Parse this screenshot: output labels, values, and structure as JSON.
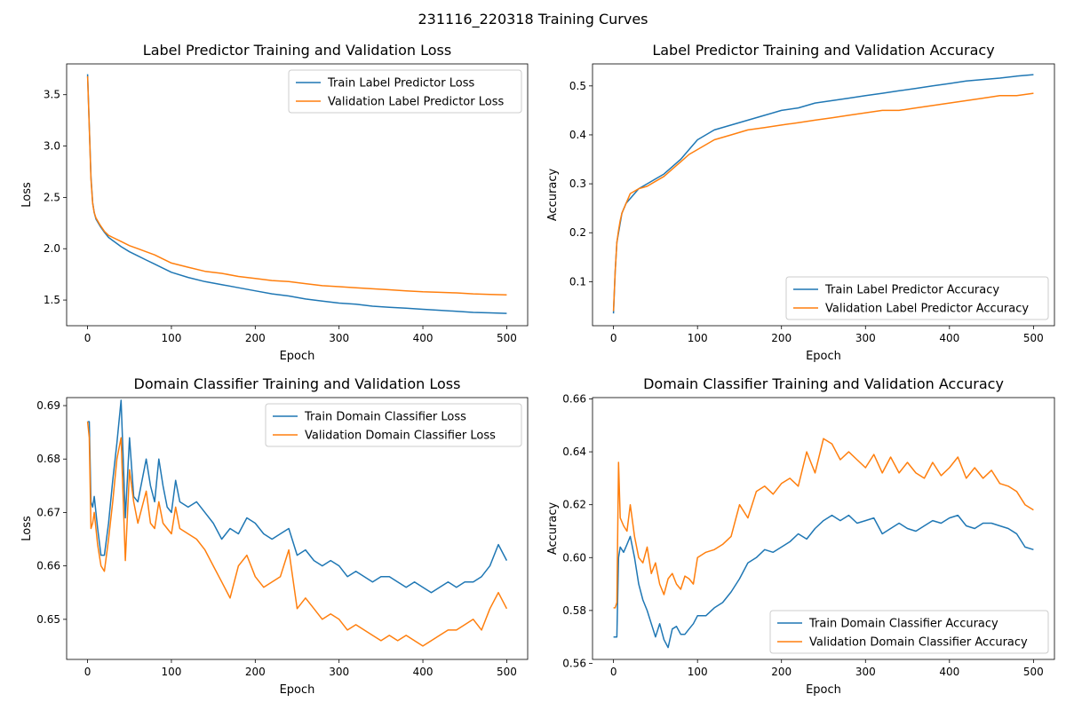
{
  "figure": {
    "suptitle": "231116_220318 Training Curves"
  },
  "colors": {
    "train": "#1f77b4",
    "validation": "#ff7f0e",
    "axes": "#000000"
  },
  "chart_data": [
    {
      "type": "line",
      "title": "Label Predictor Training and Validation Loss",
      "xlabel": "Epoch",
      "ylabel": "Loss",
      "xlim": [
        -25,
        525
      ],
      "ylim": [
        1.25,
        3.8
      ],
      "xticks": [
        0,
        100,
        200,
        300,
        400,
        500
      ],
      "yticks": [
        1.5,
        2.0,
        2.5,
        3.0,
        3.5
      ],
      "legend_position": "top-right",
      "series": [
        {
          "name": "Train Label Predictor Loss",
          "color": "#1f77b4",
          "x": [
            0,
            2,
            4,
            6,
            8,
            10,
            15,
            20,
            25,
            30,
            40,
            50,
            60,
            70,
            80,
            90,
            100,
            120,
            140,
            160,
            180,
            200,
            220,
            240,
            260,
            280,
            300,
            320,
            340,
            360,
            380,
            400,
            420,
            440,
            460,
            480,
            500
          ],
          "y": [
            3.7,
            3.2,
            2.7,
            2.45,
            2.35,
            2.29,
            2.22,
            2.16,
            2.11,
            2.08,
            2.02,
            1.97,
            1.93,
            1.89,
            1.85,
            1.81,
            1.77,
            1.72,
            1.68,
            1.65,
            1.62,
            1.59,
            1.56,
            1.54,
            1.51,
            1.49,
            1.47,
            1.46,
            1.44,
            1.43,
            1.42,
            1.41,
            1.4,
            1.39,
            1.38,
            1.375,
            1.37
          ]
        },
        {
          "name": "Validation Label Predictor Loss",
          "color": "#ff7f0e",
          "x": [
            0,
            2,
            4,
            6,
            8,
            10,
            15,
            20,
            25,
            30,
            40,
            50,
            60,
            70,
            80,
            90,
            100,
            120,
            140,
            160,
            180,
            200,
            220,
            240,
            260,
            280,
            300,
            320,
            340,
            360,
            380,
            400,
            420,
            440,
            460,
            480,
            500
          ],
          "y": [
            3.68,
            3.18,
            2.68,
            2.44,
            2.35,
            2.3,
            2.23,
            2.17,
            2.13,
            2.11,
            2.07,
            2.03,
            2.0,
            1.97,
            1.94,
            1.9,
            1.86,
            1.82,
            1.78,
            1.76,
            1.73,
            1.71,
            1.69,
            1.68,
            1.66,
            1.64,
            1.63,
            1.62,
            1.61,
            1.6,
            1.59,
            1.58,
            1.575,
            1.57,
            1.56,
            1.555,
            1.55
          ]
        }
      ]
    },
    {
      "type": "line",
      "title": "Label Predictor Training and Validation Accuracy",
      "xlabel": "Epoch",
      "ylabel": "Accuracy",
      "xlim": [
        -25,
        525
      ],
      "ylim": [
        0.01,
        0.545
      ],
      "xticks": [
        0,
        100,
        200,
        300,
        400,
        500
      ],
      "yticks": [
        0.1,
        0.2,
        0.3,
        0.4,
        0.5
      ],
      "legend_position": "bottom-right",
      "series": [
        {
          "name": "Train Label Predictor Accuracy",
          "color": "#1f77b4",
          "x": [
            0,
            2,
            4,
            6,
            8,
            10,
            15,
            20,
            25,
            30,
            40,
            50,
            60,
            70,
            80,
            90,
            100,
            120,
            140,
            160,
            180,
            200,
            220,
            240,
            260,
            280,
            300,
            320,
            340,
            360,
            380,
            400,
            420,
            440,
            460,
            480,
            500
          ],
          "y": [
            0.035,
            0.12,
            0.18,
            0.2,
            0.22,
            0.24,
            0.26,
            0.27,
            0.28,
            0.29,
            0.3,
            0.31,
            0.32,
            0.335,
            0.35,
            0.37,
            0.39,
            0.41,
            0.42,
            0.43,
            0.44,
            0.45,
            0.455,
            0.465,
            0.47,
            0.475,
            0.48,
            0.485,
            0.49,
            0.495,
            0.5,
            0.505,
            0.51,
            0.513,
            0.516,
            0.52,
            0.523
          ]
        },
        {
          "name": "Validation Label Predictor Accuracy",
          "color": "#ff7f0e",
          "x": [
            0,
            2,
            4,
            6,
            8,
            10,
            15,
            20,
            25,
            30,
            40,
            50,
            60,
            70,
            80,
            90,
            100,
            120,
            140,
            160,
            180,
            200,
            220,
            240,
            260,
            280,
            300,
            320,
            340,
            360,
            380,
            400,
            420,
            440,
            460,
            480,
            500
          ],
          "y": [
            0.04,
            0.12,
            0.18,
            0.205,
            0.225,
            0.24,
            0.26,
            0.28,
            0.285,
            0.29,
            0.295,
            0.305,
            0.315,
            0.33,
            0.345,
            0.36,
            0.37,
            0.39,
            0.4,
            0.41,
            0.415,
            0.42,
            0.425,
            0.43,
            0.435,
            0.44,
            0.445,
            0.45,
            0.45,
            0.455,
            0.46,
            0.465,
            0.47,
            0.475,
            0.48,
            0.48,
            0.485
          ]
        }
      ]
    },
    {
      "type": "line",
      "title": "Domain Classifier Training and Validation Loss",
      "xlabel": "Epoch",
      "ylabel": "Loss",
      "xlim": [
        -25,
        525
      ],
      "ylim": [
        0.6425,
        0.6915
      ],
      "xticks": [
        0,
        100,
        200,
        300,
        400,
        500
      ],
      "yticks": [
        0.65,
        0.66,
        0.67,
        0.68,
        0.69
      ],
      "legend_position": "top-right",
      "series": [
        {
          "name": "Train Domain Classifier Loss",
          "color": "#1f77b4",
          "x": [
            0,
            2,
            4,
            6,
            8,
            12,
            16,
            20,
            25,
            30,
            35,
            40,
            45,
            50,
            55,
            60,
            65,
            70,
            75,
            80,
            85,
            90,
            95,
            100,
            105,
            110,
            120,
            130,
            140,
            150,
            160,
            170,
            180,
            190,
            200,
            210,
            220,
            230,
            240,
            250,
            260,
            270,
            280,
            290,
            300,
            310,
            320,
            330,
            340,
            350,
            360,
            370,
            380,
            390,
            400,
            410,
            420,
            430,
            440,
            450,
            460,
            470,
            480,
            490,
            500
          ],
          "y": [
            0.687,
            0.687,
            0.672,
            0.671,
            0.673,
            0.667,
            0.662,
            0.662,
            0.668,
            0.676,
            0.683,
            0.691,
            0.669,
            0.684,
            0.673,
            0.672,
            0.676,
            0.68,
            0.675,
            0.672,
            0.68,
            0.675,
            0.671,
            0.67,
            0.676,
            0.672,
            0.671,
            0.672,
            0.67,
            0.668,
            0.665,
            0.667,
            0.666,
            0.669,
            0.668,
            0.666,
            0.665,
            0.666,
            0.667,
            0.662,
            0.663,
            0.661,
            0.66,
            0.661,
            0.66,
            0.658,
            0.659,
            0.658,
            0.657,
            0.658,
            0.658,
            0.657,
            0.656,
            0.657,
            0.656,
            0.655,
            0.656,
            0.657,
            0.656,
            0.657,
            0.657,
            0.658,
            0.66,
            0.664,
            0.661
          ]
        },
        {
          "name": "Validation Domain Classifier Loss",
          "color": "#ff7f0e",
          "x": [
            0,
            2,
            4,
            6,
            8,
            12,
            16,
            20,
            25,
            30,
            35,
            40,
            45,
            50,
            55,
            60,
            65,
            70,
            75,
            80,
            85,
            90,
            95,
            100,
            105,
            110,
            120,
            130,
            140,
            150,
            160,
            170,
            180,
            190,
            200,
            210,
            220,
            230,
            240,
            250,
            260,
            270,
            280,
            290,
            300,
            310,
            320,
            330,
            340,
            350,
            360,
            370,
            380,
            390,
            400,
            410,
            420,
            430,
            440,
            450,
            460,
            470,
            480,
            490,
            500
          ],
          "y": [
            0.687,
            0.684,
            0.667,
            0.668,
            0.67,
            0.664,
            0.66,
            0.659,
            0.665,
            0.672,
            0.68,
            0.684,
            0.661,
            0.678,
            0.672,
            0.668,
            0.671,
            0.674,
            0.668,
            0.667,
            0.672,
            0.668,
            0.667,
            0.666,
            0.671,
            0.667,
            0.666,
            0.665,
            0.663,
            0.66,
            0.657,
            0.654,
            0.66,
            0.662,
            0.658,
            0.656,
            0.657,
            0.658,
            0.663,
            0.652,
            0.654,
            0.652,
            0.65,
            0.651,
            0.65,
            0.648,
            0.649,
            0.648,
            0.647,
            0.646,
            0.647,
            0.646,
            0.647,
            0.646,
            0.645,
            0.646,
            0.647,
            0.648,
            0.648,
            0.649,
            0.65,
            0.648,
            0.652,
            0.655,
            0.652
          ]
        }
      ]
    },
    {
      "type": "line",
      "title": "Domain Classifier Training and Validation Accuracy",
      "xlabel": "Epoch",
      "ylabel": "Accuracy",
      "xlim": [
        -25,
        525
      ],
      "ylim": [
        0.5615,
        0.6605
      ],
      "xticks": [
        0,
        100,
        200,
        300,
        400,
        500
      ],
      "yticks": [
        0.56,
        0.58,
        0.6,
        0.62,
        0.64,
        0.66
      ],
      "legend_position": "bottom-right",
      "series": [
        {
          "name": "Train Domain Classifier Accuracy",
          "color": "#1f77b4",
          "x": [
            0,
            2,
            4,
            6,
            8,
            12,
            16,
            20,
            25,
            30,
            35,
            40,
            45,
            50,
            55,
            60,
            65,
            70,
            75,
            80,
            85,
            90,
            95,
            100,
            110,
            120,
            130,
            140,
            150,
            160,
            170,
            180,
            190,
            200,
            210,
            220,
            230,
            240,
            250,
            260,
            270,
            280,
            290,
            300,
            310,
            320,
            330,
            340,
            350,
            360,
            370,
            380,
            390,
            400,
            410,
            420,
            430,
            440,
            450,
            460,
            470,
            480,
            490,
            500
          ],
          "y": [
            0.57,
            0.57,
            0.57,
            0.6,
            0.604,
            0.602,
            0.605,
            0.608,
            0.6,
            0.59,
            0.584,
            0.58,
            0.575,
            0.57,
            0.575,
            0.569,
            0.566,
            0.573,
            0.574,
            0.571,
            0.571,
            0.573,
            0.575,
            0.578,
            0.578,
            0.581,
            0.583,
            0.587,
            0.592,
            0.598,
            0.6,
            0.603,
            0.602,
            0.604,
            0.606,
            0.609,
            0.607,
            0.611,
            0.614,
            0.616,
            0.614,
            0.616,
            0.613,
            0.614,
            0.615,
            0.609,
            0.611,
            0.613,
            0.611,
            0.61,
            0.612,
            0.614,
            0.613,
            0.615,
            0.616,
            0.612,
            0.611,
            0.613,
            0.613,
            0.612,
            0.611,
            0.609,
            0.604,
            0.603
          ]
        },
        {
          "name": "Validation Domain Classifier Accuracy",
          "color": "#ff7f0e",
          "x": [
            0,
            2,
            4,
            6,
            8,
            12,
            16,
            20,
            25,
            30,
            35,
            40,
            45,
            50,
            55,
            60,
            65,
            70,
            75,
            80,
            85,
            90,
            95,
            100,
            110,
            120,
            130,
            140,
            150,
            160,
            170,
            180,
            190,
            200,
            210,
            220,
            230,
            240,
            250,
            260,
            270,
            280,
            290,
            300,
            310,
            320,
            330,
            340,
            350,
            360,
            370,
            380,
            390,
            400,
            410,
            420,
            430,
            440,
            450,
            460,
            470,
            480,
            490,
            500
          ],
          "y": [
            0.581,
            0.581,
            0.583,
            0.636,
            0.615,
            0.612,
            0.61,
            0.62,
            0.608,
            0.6,
            0.598,
            0.604,
            0.594,
            0.598,
            0.59,
            0.586,
            0.592,
            0.594,
            0.59,
            0.588,
            0.593,
            0.592,
            0.59,
            0.6,
            0.602,
            0.603,
            0.605,
            0.608,
            0.62,
            0.615,
            0.625,
            0.627,
            0.624,
            0.628,
            0.63,
            0.627,
            0.64,
            0.632,
            0.645,
            0.643,
            0.637,
            0.64,
            0.637,
            0.634,
            0.639,
            0.632,
            0.638,
            0.632,
            0.636,
            0.632,
            0.63,
            0.636,
            0.631,
            0.634,
            0.638,
            0.63,
            0.634,
            0.63,
            0.633,
            0.628,
            0.627,
            0.625,
            0.62,
            0.618
          ]
        }
      ]
    }
  ]
}
